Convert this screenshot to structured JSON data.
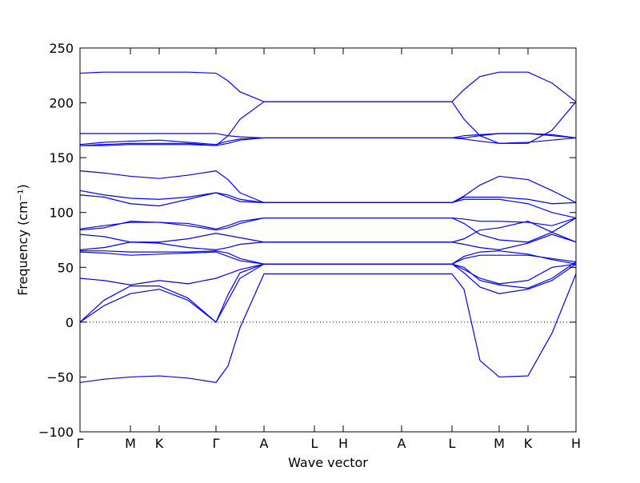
{
  "chart_data": {
    "type": "line",
    "xlabel": "Wave vector",
    "ylabel": "Frequency (cm⁻¹)",
    "color": "#0000ff",
    "hline": 0,
    "xlim": [
      0,
      6.2
    ],
    "ylim": [
      -100,
      250
    ],
    "yticks": [
      {
        "value": -100,
        "label": "−100"
      },
      {
        "value": -50,
        "label": "−50"
      },
      0,
      50,
      100,
      150,
      200,
      250
    ],
    "xticks": [
      {
        "value": 0,
        "label": "Γ"
      },
      {
        "value": 0.63,
        "label": "M"
      },
      {
        "value": 0.99,
        "label": "K"
      },
      {
        "value": 1.7,
        "label": "Γ"
      },
      {
        "value": 2.3,
        "label": "A"
      },
      {
        "value": 2.93,
        "label": "L"
      },
      {
        "value": 3.29,
        "label": "H"
      },
      {
        "value": 4.02,
        "label": "A"
      },
      {
        "value": 4.65,
        "label": "L"
      },
      {
        "value": 5.24,
        "label": "M"
      },
      {
        "value": 5.6,
        "label": "K"
      },
      {
        "value": 6.2,
        "label": "H"
      }
    ],
    "x": [
      0,
      0.3,
      0.63,
      0.99,
      1.35,
      1.7,
      1.85,
      2.0,
      2.3,
      2.93,
      3.29,
      4.02,
      4.65,
      4.8,
      5.0,
      5.24,
      5.6,
      5.9,
      6.2
    ],
    "series": [
      {
        "values": [
          -55,
          -52,
          -50,
          -49,
          -51,
          -55,
          -40,
          -5,
          44,
          44,
          44,
          44,
          44,
          30,
          -35,
          -50,
          -49,
          -10,
          44
        ]
      },
      {
        "values": [
          0,
          15,
          26,
          30,
          20,
          0,
          20,
          40,
          53,
          53,
          53,
          53,
          53,
          45,
          32,
          26,
          30,
          38,
          53
        ]
      },
      {
        "values": [
          0,
          20,
          33,
          33,
          22,
          0,
          25,
          45,
          53,
          53,
          53,
          53,
          53,
          50,
          38,
          34,
          31,
          40,
          55
        ]
      },
      {
        "values": [
          40,
          38,
          34,
          38,
          35,
          40,
          44,
          48,
          53,
          53,
          53,
          53,
          53,
          48,
          40,
          35,
          38,
          50,
          53
        ]
      },
      {
        "values": [
          64,
          63,
          61,
          62,
          63,
          64,
          60,
          56,
          53,
          53,
          53,
          53,
          53,
          58,
          61,
          61,
          61,
          58,
          55
        ]
      },
      {
        "values": [
          65,
          65,
          64,
          64,
          64,
          65,
          63,
          58,
          53,
          53,
          53,
          53,
          53,
          60,
          64,
          65,
          62,
          57,
          53
        ]
      },
      {
        "values": [
          66,
          68,
          73,
          72,
          68,
          66,
          68,
          71,
          73,
          73,
          73,
          73,
          73,
          76,
          84,
          86,
          92,
          82,
          73
        ]
      },
      {
        "values": [
          80,
          78,
          73,
          73,
          76,
          81,
          79,
          77,
          73,
          73,
          73,
          73,
          73,
          71,
          68,
          66,
          72,
          80,
          73
        ]
      },
      {
        "values": [
          84,
          86,
          92,
          91,
          88,
          84,
          86,
          90,
          95,
          95,
          95,
          95,
          95,
          94,
          92,
          92,
          91,
          88,
          95
        ]
      },
      {
        "values": [
          85,
          88,
          91,
          91,
          90,
          85,
          88,
          92,
          95,
          95,
          95,
          95,
          95,
          90,
          80,
          75,
          73,
          82,
          95
        ]
      },
      {
        "values": [
          116,
          114,
          108,
          106,
          112,
          118,
          116,
          112,
          109,
          109,
          109,
          109,
          109,
          112,
          112,
          112,
          108,
          100,
          95
        ]
      },
      {
        "values": [
          120,
          116,
          113,
          112,
          114,
          118,
          114,
          110,
          109,
          109,
          109,
          109,
          109,
          114,
          114,
          114,
          112,
          108,
          109
        ]
      },
      {
        "values": [
          138,
          136,
          133,
          131,
          134,
          138,
          130,
          118,
          109,
          109,
          109,
          109,
          109,
          115,
          125,
          133,
          130,
          120,
          109
        ]
      },
      {
        "values": [
          161,
          162,
          163,
          163,
          163,
          161,
          163,
          166,
          168,
          168,
          168,
          168,
          168,
          167,
          165,
          163,
          164,
          166,
          168
        ]
      },
      {
        "values": [
          162,
          164,
          165,
          166,
          164,
          162,
          165,
          167,
          168,
          168,
          168,
          168,
          168,
          168,
          170,
          172,
          172,
          171,
          168
        ]
      },
      {
        "values": [
          172,
          172,
          172,
          172,
          172,
          172,
          170,
          169,
          168,
          168,
          168,
          168,
          168,
          170,
          171,
          172,
          172,
          170,
          168
        ]
      },
      {
        "values": [
          227,
          228,
          228,
          228,
          228,
          227,
          220,
          210,
          201,
          201,
          201,
          201,
          201,
          212,
          224,
          228,
          228,
          218,
          201
        ]
      },
      {
        "values": [
          161,
          161,
          162,
          162,
          162,
          161,
          170,
          185,
          201,
          201,
          201,
          201,
          201,
          185,
          170,
          163,
          163,
          175,
          201
        ]
      }
    ]
  }
}
